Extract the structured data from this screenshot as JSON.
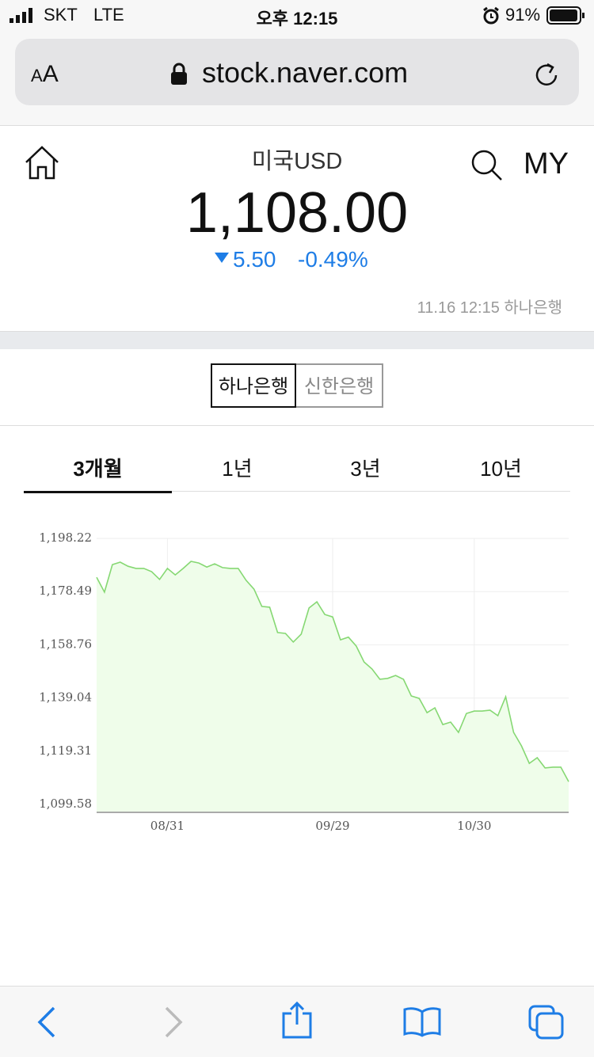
{
  "status_bar": {
    "carrier": "SKT",
    "network": "LTE",
    "time": "오후 12:15",
    "battery": "91%"
  },
  "browser": {
    "text_size": "AA",
    "url": "stock.naver.com"
  },
  "header": {
    "title": "미국USD",
    "menu": "MY",
    "price": "1,108.00",
    "change": "5.50",
    "change_percent": "-0.49%",
    "updated": "11.16 12:15 하나은행"
  },
  "bank_tabs": [
    "하나은행",
    "신한은행"
  ],
  "period_tabs": [
    "3개월",
    "1년",
    "3년",
    "10년"
  ],
  "chart_data": {
    "type": "area",
    "categories": [
      null,
      null,
      null,
      null,
      null,
      null,
      null,
      null,
      null,
      "08/31",
      null,
      null,
      null,
      null,
      null,
      null,
      null,
      null,
      null,
      null,
      null,
      null,
      null,
      null,
      null,
      null,
      null,
      null,
      null,
      null,
      "09/29",
      null,
      null,
      null,
      null,
      null,
      null,
      null,
      null,
      null,
      null,
      null,
      null,
      null,
      null,
      null,
      null,
      null,
      "10/30",
      null,
      null,
      null,
      null,
      null,
      null,
      null,
      null,
      null,
      null,
      null,
      null
    ],
    "values": [
      1183.8,
      1178.3,
      1188.5,
      1189.4,
      1187.9,
      1187.1,
      1187.1,
      1185.9,
      1183.0,
      1187.1,
      1184.7,
      1187.1,
      1189.7,
      1189.1,
      1187.6,
      1188.8,
      1187.4,
      1187.1,
      1187.1,
      1182.7,
      1179.4,
      1173.0,
      1172.7,
      1163.3,
      1163.0,
      1159.8,
      1162.7,
      1172.4,
      1174.7,
      1170.0,
      1169.1,
      1160.6,
      1161.6,
      1158.3,
      1152.4,
      1149.8,
      1146.0,
      1146.3,
      1147.4,
      1146.0,
      1139.8,
      1138.9,
      1133.6,
      1135.4,
      1129.2,
      1130.1,
      1126.3,
      1133.3,
      1134.2,
      1134.2,
      1134.5,
      1132.5,
      1139.5,
      1126.3,
      1121.3,
      1114.8,
      1116.9,
      1113.1,
      1113.4,
      1113.4,
      1108.0
    ],
    "color": "#86d873",
    "fill_color": "#effdea",
    "ylim": [
      1096.64,
      1198.22
    ],
    "yticks": [
      {
        "value": 1099.58,
        "label": "1,099.58"
      },
      {
        "value": 1119.31,
        "label": "1,119.31"
      },
      {
        "value": 1139.04,
        "label": "1,139.04"
      },
      {
        "value": 1158.76,
        "label": "1,158.76"
      },
      {
        "value": 1178.49,
        "label": "1,178.49"
      },
      {
        "value": 1198.22,
        "label": "1,198.22"
      }
    ],
    "grid": true
  }
}
